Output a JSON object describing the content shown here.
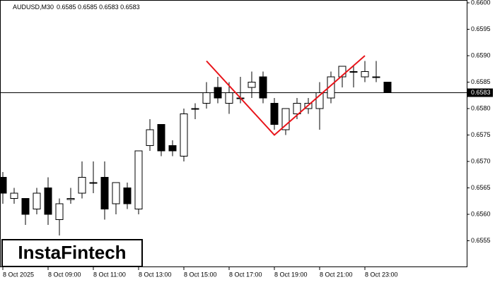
{
  "chart_data": {
    "type": "candlestick",
    "title": "AUDUSD,M30",
    "subtitle": "0.6585 0.6585 0.6583 0.6583",
    "categories": [
      "8 Oct 2025",
      null,
      null,
      null,
      "8 Oct 09:00",
      null,
      null,
      null,
      "8 Oct 11:00",
      null,
      null,
      null,
      "8 Oct 13:00",
      null,
      null,
      null,
      "8 Oct 15:00",
      null,
      null,
      null,
      "8 Oct 17:00",
      null,
      null,
      null,
      "8 Oct 19:00",
      null,
      null,
      null,
      "8 Oct 21:00",
      null,
      null,
      null,
      "8 Oct 23:00",
      null,
      null
    ],
    "open": [
      0.6567,
      0.6563,
      0.6563,
      0.6561,
      0.6565,
      0.6559,
      0.65628,
      0.6564,
      0.6566,
      0.6567,
      0.6562,
      0.6565,
      0.6561,
      0.6573,
      0.6577,
      0.6573,
      0.6571,
      0.658,
      0.6581,
      0.6584,
      0.6581,
      0.6582,
      0.6584,
      0.6586,
      0.6581,
      0.6576,
      0.6579,
      0.658,
      0.658,
      0.6582,
      0.6586,
      0.6587,
      0.6586,
      0.6586,
      0.6585
    ],
    "high": [
      0.6568,
      0.6565,
      0.6563,
      0.6565,
      0.6567,
      0.6563,
      0.6565,
      0.657,
      0.657,
      0.657,
      0.6566,
      0.6566,
      0.6572,
      0.6578,
      0.6577,
      0.6574,
      0.658,
      0.6581,
      0.6585,
      0.6586,
      0.6585,
      0.6586,
      0.6587,
      0.6587,
      0.6582,
      0.658,
      0.6582,
      0.6582,
      0.6585,
      0.6587,
      0.6588,
      0.6588,
      0.6589,
      0.6589,
      0.6585
    ],
    "low": [
      0.6562,
      0.6562,
      0.6558,
      0.656,
      0.6558,
      0.6556,
      0.6562,
      0.6563,
      0.6564,
      0.6559,
      0.656,
      0.6561,
      0.656,
      0.6572,
      0.6571,
      0.6571,
      0.657,
      0.6578,
      0.658,
      0.6581,
      0.6579,
      0.6581,
      0.6582,
      0.6581,
      0.6576,
      0.6575,
      0.6578,
      0.6579,
      0.6576,
      0.6581,
      0.6584,
      0.6584,
      0.6585,
      0.6585,
      0.6583
    ],
    "close": [
      0.6564,
      0.6564,
      0.656,
      0.6564,
      0.656,
      0.6562,
      0.6563,
      0.6567,
      0.6566,
      0.6561,
      0.6566,
      0.6562,
      0.6572,
      0.6576,
      0.6572,
      0.6572,
      0.6579,
      0.658,
      0.6583,
      0.6582,
      0.6583,
      0.6582,
      0.6585,
      0.6582,
      0.6577,
      0.658,
      0.6581,
      0.6581,
      0.6583,
      0.6586,
      0.6588,
      0.6587,
      0.6587,
      0.6586,
      0.6583
    ],
    "up_color": "#ffffff",
    "down_color": "#000000",
    "ylim": [
      0.655,
      0.66
    ],
    "yticks": [
      0.6555,
      {
        "value": 0.656,
        "label": "0.6560"
      },
      0.6565,
      {
        "value": 0.657,
        "label": "0.6570"
      },
      0.6575,
      {
        "value": 0.658,
        "label": "0.6580"
      },
      0.6585,
      {
        "value": 0.659,
        "label": "0.6590"
      },
      0.6595,
      {
        "value": 0.66,
        "label": "0.6600"
      }
    ],
    "current_price": 0.6583,
    "pattern_line": {
      "color": "#e8141a",
      "category_index": [
        18,
        24,
        32
      ],
      "values": [
        0.6589,
        0.6575,
        0.659
      ]
    }
  },
  "logo": "InstaFintech"
}
